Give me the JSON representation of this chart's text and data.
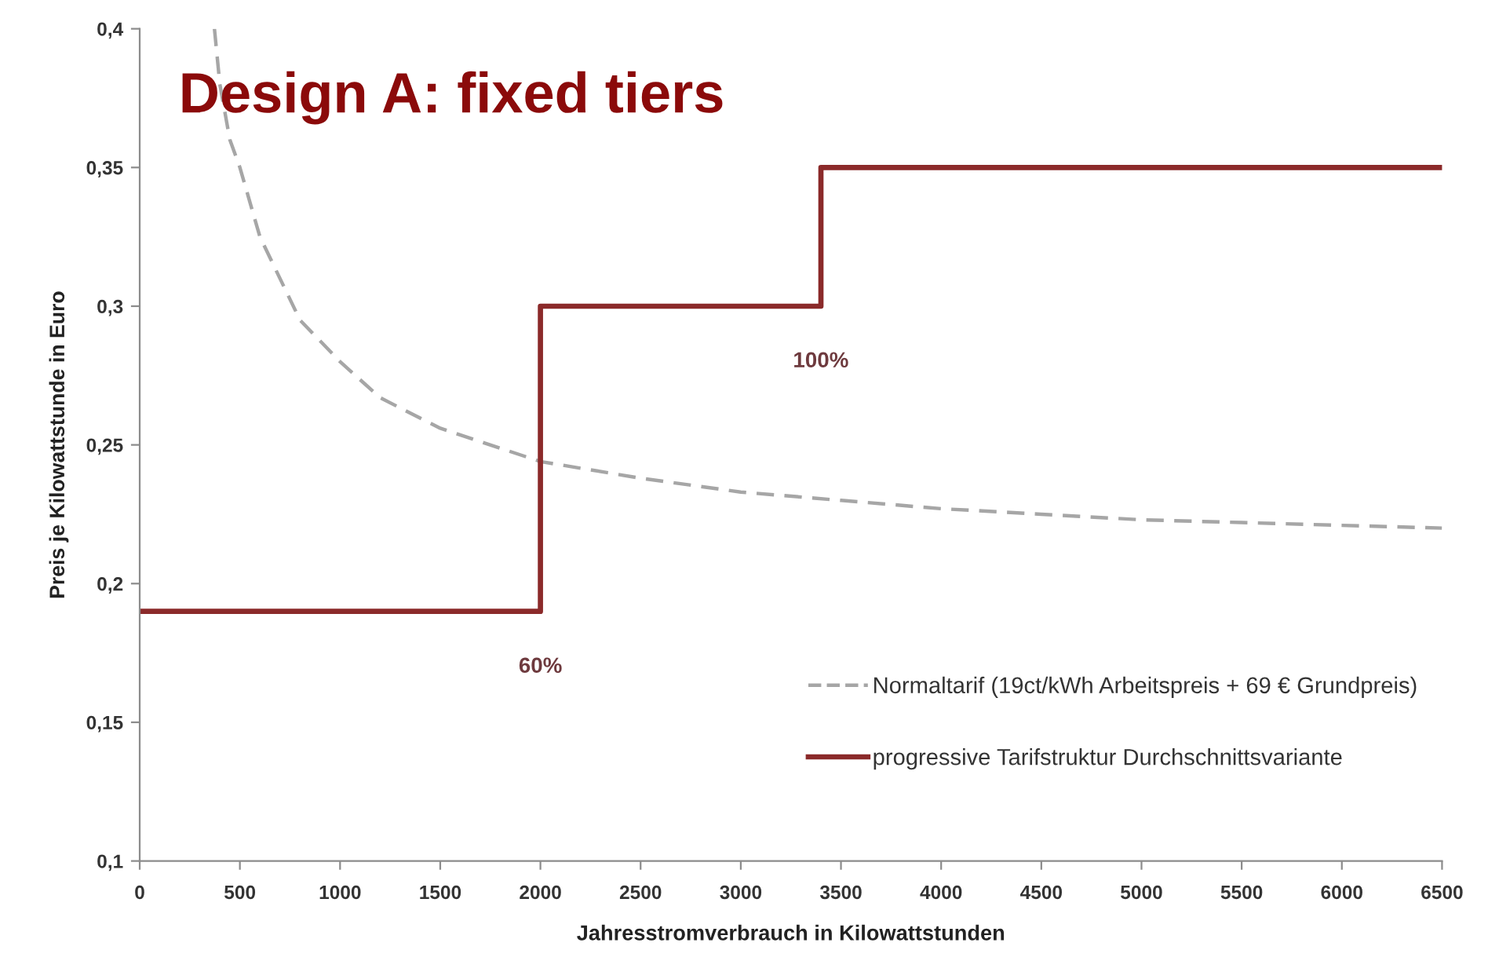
{
  "chart_data": {
    "type": "line",
    "title": "Design A: fixed tiers",
    "xlabel": "Jahresstromverbrauch in Kilowattstunden",
    "ylabel": "Preis je Kilowattstunde in Euro",
    "xlim": [
      0,
      6500
    ],
    "xticks": [
      0,
      500,
      1000,
      1500,
      2000,
      2500,
      3000,
      3500,
      4000,
      4500,
      5000,
      5500,
      6000,
      6500
    ],
    "ylim": [
      0.1,
      0.4
    ],
    "yticks": [
      {
        "value": 0.1,
        "label": "0,1"
      },
      {
        "value": 0.15,
        "label": "0,15"
      },
      {
        "value": 0.2,
        "label": "0,2"
      },
      {
        "value": 0.25,
        "label": "0,25"
      },
      {
        "value": 0.3,
        "label": "0,3"
      },
      {
        "value": 0.35,
        "label": "0,35"
      },
      {
        "value": 0.4,
        "label": "0,4"
      }
    ],
    "series": [
      {
        "name": "Normaltarif (19ct/kWh Arbeitspreis + 69 € Grundpreis)",
        "color": "#a6a6a6",
        "line_style": "dashed",
        "x": [
          373,
          400,
          450,
          500,
          600,
          700,
          800,
          1000,
          1200,
          1500,
          2000,
          2500,
          3000,
          3500,
          4000,
          4500,
          5000,
          5500,
          6000,
          6500
        ],
        "values": [
          0.4,
          0.38,
          0.36,
          0.35,
          0.325,
          0.31,
          0.295,
          0.28,
          0.267,
          0.256,
          0.244,
          0.238,
          0.233,
          0.23,
          0.227,
          0.225,
          0.223,
          0.222,
          0.221,
          0.22
        ]
      },
      {
        "name": "progressive Tarifstruktur Durchschnittsvariante",
        "type": "step",
        "color": "#8b2a2a",
        "line_style": "solid",
        "x": [
          0,
          2000,
          3400,
          6500
        ],
        "values": [
          0.19,
          0.3,
          0.35,
          0.35
        ]
      }
    ],
    "annotations": [
      "60%",
      "100%"
    ],
    "legend": "lower right"
  }
}
